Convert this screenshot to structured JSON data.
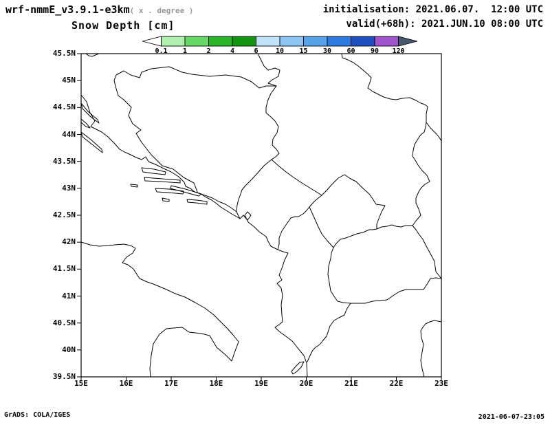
{
  "header": {
    "model_title": "wrf-nmmE_v3.9.1-e3km",
    "model_subtitle": "( x . degree )",
    "initialisation": "initialisation: 2021.06.07.  12:00 UTC",
    "variable_title": "Snow Depth [cm]",
    "valid": "valid(+68h): 2021.JUN.10 08:00 UTC"
  },
  "colorbar": {
    "levels": [
      "0.1",
      "1",
      "2",
      "4",
      "6",
      "10",
      "15",
      "30",
      "60",
      "90",
      "120"
    ],
    "colors": [
      "#ffffff",
      "#b0f0b0",
      "#66d866",
      "#2ab42a",
      "#129612",
      "#c0e2f8",
      "#8cc4f2",
      "#58a2e8",
      "#2e7ade",
      "#1e50c0",
      "#a055cc",
      "#46586e"
    ]
  },
  "map": {
    "lat_labels": [
      "45.5N",
      "45N",
      "44.5N",
      "44N",
      "43.5N",
      "43N",
      "42.5N",
      "42N",
      "41.5N",
      "41N",
      "40.5N",
      "40N",
      "39.5N"
    ],
    "lon_labels": [
      "15E",
      "16E",
      "17E",
      "18E",
      "19E",
      "20E",
      "21E",
      "22E",
      "23E"
    ]
  },
  "chart_data": {
    "type": "map",
    "title": "Snow Depth [cm]",
    "model": "wrf-nmmE_v3.9.1-e3km",
    "init_time": "2021.06.07. 12:00 UTC",
    "valid_time": "2021.JUN.10 08:00 UTC",
    "lead_hours": 68,
    "lon_range_deg_e": [
      15,
      23
    ],
    "lat_range_deg_n": [
      39.5,
      45.5
    ],
    "colorbar_levels_cm": [
      0.1,
      1,
      2,
      4,
      6,
      10,
      15,
      30,
      60,
      90,
      120
    ],
    "region": "Balkans / Adriatic",
    "field_note": "no shaded snow-depth values visible inside domain (empty field, outlines only)"
  },
  "footer": {
    "left": "GrADS: COLA/IGES",
    "right": "2021-06-07-23:05"
  }
}
